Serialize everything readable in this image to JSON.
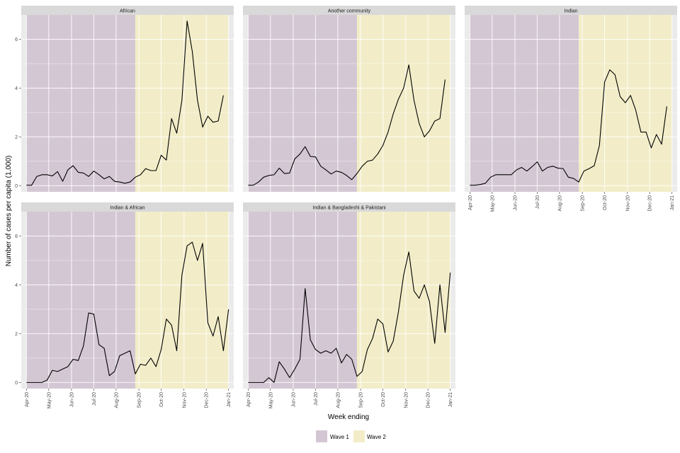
{
  "chart_data": {
    "type": "line",
    "title": "",
    "xlabel": "Week ending",
    "ylabel": "Number of cases per capita (1,000)",
    "ylim": [
      -0.25,
      7.0
    ],
    "yticks": [
      0,
      2,
      4,
      6
    ],
    "x_tick_labels": [
      "Apr-20",
      "May-20",
      "Jun-20",
      "Jul-20",
      "Aug-20",
      "Sep-20",
      "Oct-20",
      "Nov-20",
      "Dec-20",
      "Jan-21"
    ],
    "x_tick_weeks": [
      0,
      4.3,
      8.7,
      13,
      17.3,
      21.7,
      26,
      30.4,
      34.7,
      39
    ],
    "xlim": [
      -1,
      40
    ],
    "shading": [
      {
        "label": "Wave 1",
        "color": "#d4c7d4",
        "from_week": 0,
        "to_week": 21
      },
      {
        "label": "Wave 2",
        "color": "#f2edc8",
        "from_week": 21,
        "to_week": 39
      }
    ],
    "legend_position": "bottom",
    "panels": [
      {
        "name": "African",
        "values": [
          0.02,
          0.02,
          0.38,
          0.45,
          0.45,
          0.4,
          0.58,
          0.18,
          0.65,
          0.82,
          0.55,
          0.52,
          0.38,
          0.6,
          0.45,
          0.28,
          0.38,
          0.18,
          0.15,
          0.1,
          0.15,
          0.35,
          0.45,
          0.7,
          0.62,
          0.62,
          1.25,
          1.05,
          2.75,
          2.15,
          3.5,
          6.75,
          5.5,
          3.5,
          2.4,
          2.85,
          2.6,
          2.65,
          3.7
        ]
      },
      {
        "name": "Another community",
        "values": [
          0.02,
          0.02,
          0.15,
          0.35,
          0.42,
          0.45,
          0.72,
          0.5,
          0.52,
          1.1,
          1.3,
          1.6,
          1.2,
          1.18,
          0.8,
          0.65,
          0.48,
          0.6,
          0.55,
          0.42,
          0.25,
          0.5,
          0.8,
          1.0,
          1.05,
          1.3,
          1.65,
          2.2,
          2.95,
          3.55,
          4.0,
          4.95,
          3.5,
          2.55,
          2.0,
          2.25,
          2.65,
          2.75,
          4.35
        ]
      },
      {
        "name": "Indian",
        "values": [
          0.02,
          0.02,
          0.05,
          0.1,
          0.35,
          0.45,
          0.45,
          0.45,
          0.45,
          0.65,
          0.75,
          0.6,
          0.78,
          0.98,
          0.6,
          0.75,
          0.8,
          0.72,
          0.7,
          0.35,
          0.3,
          0.15,
          0.6,
          0.7,
          0.82,
          1.65,
          4.25,
          4.75,
          4.55,
          3.65,
          3.4,
          3.7,
          3.1,
          2.2,
          2.2,
          1.55,
          2.1,
          1.7,
          3.25
        ]
      },
      {
        "name": "Indian & African",
        "values": [
          0.0,
          0.0,
          0.0,
          0.0,
          0.1,
          0.5,
          0.45,
          0.55,
          0.65,
          0.95,
          0.9,
          1.5,
          2.85,
          2.8,
          1.55,
          1.4,
          0.28,
          0.45,
          1.1,
          1.2,
          1.3,
          0.35,
          0.75,
          0.7,
          1.0,
          0.65,
          1.35,
          2.6,
          2.35,
          1.3,
          4.4,
          5.6,
          5.75,
          5.0,
          5.7,
          2.45,
          1.9,
          2.7,
          1.3,
          3.0
        ]
      },
      {
        "name": "Indian & Bangladeshi & Pakistani",
        "values": [
          0.0,
          0.0,
          0.0,
          0.0,
          0.2,
          0.0,
          0.85,
          0.55,
          0.2,
          0.55,
          0.95,
          3.85,
          1.75,
          1.35,
          1.2,
          1.3,
          1.2,
          1.4,
          0.8,
          1.15,
          0.95,
          0.25,
          0.45,
          1.35,
          1.8,
          2.6,
          2.4,
          1.25,
          1.7,
          2.9,
          4.4,
          5.35,
          3.75,
          3.45,
          4.0,
          3.3,
          1.6,
          4.0,
          2.05,
          4.5
        ]
      }
    ]
  },
  "legend": {
    "items": [
      {
        "label": "Wave 1",
        "color": "#d4c7d4"
      },
      {
        "label": "Wave 2",
        "color": "#f2edc8"
      }
    ]
  },
  "colors": {
    "panel_background": "#ebebeb",
    "strip_background": "#d9d9d9",
    "gridline": "#ffffff",
    "series_line": "#000000"
  }
}
